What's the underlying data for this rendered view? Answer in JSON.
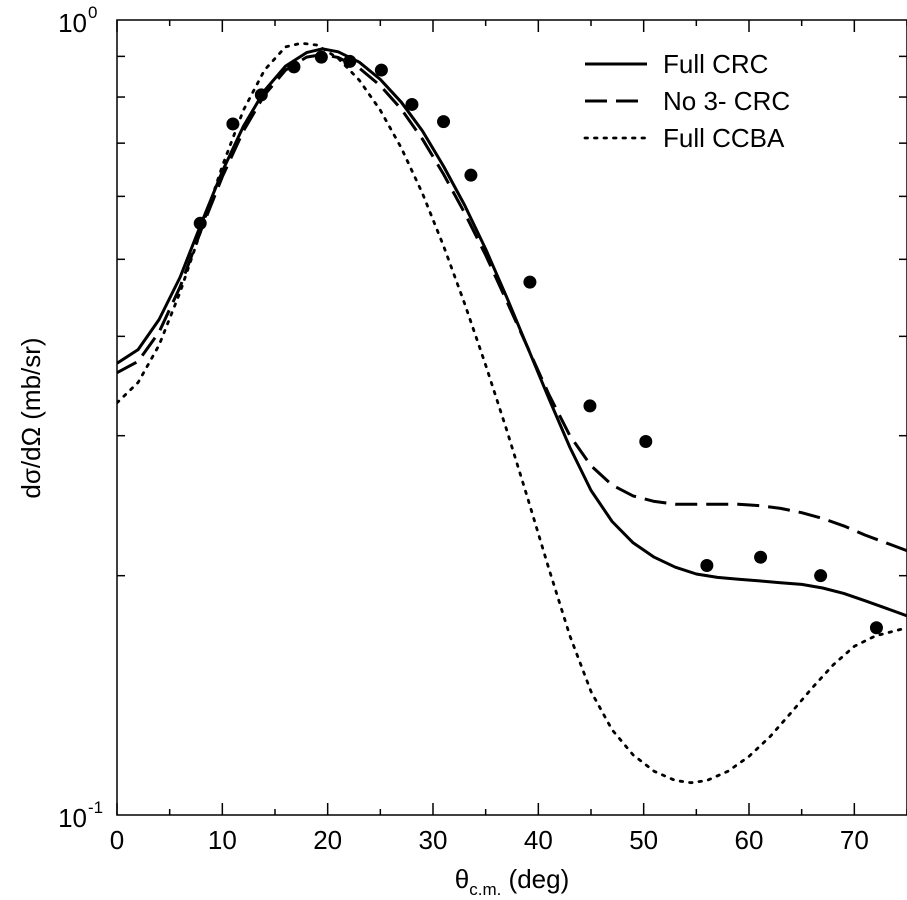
{
  "chart_data": {
    "type": "line",
    "title": "",
    "xlabel": "θ",
    "xlabel_sub": "c.m.",
    "xlabel_unit": " (deg)",
    "ylabel": "dσ/dΩ (mb/sr)",
    "xlim": [
      0,
      75
    ],
    "ylim": [
      0.1,
      1
    ],
    "yscale": "log",
    "x_ticks": [
      0,
      10,
      20,
      30,
      40,
      50,
      60,
      70
    ],
    "y_tick_labels": [
      {
        "value": 1,
        "base": "10",
        "exp": "0"
      },
      {
        "value": 0.1,
        "base": "10",
        "exp": "-1"
      }
    ],
    "grid": false,
    "legend_position": "top-right",
    "series": [
      {
        "name": "Full CRC",
        "style": "solid",
        "color": "#000000",
        "x": [
          0,
          2,
          4,
          6,
          8,
          10,
          12,
          14,
          16,
          18,
          19.5,
          21,
          23,
          25,
          27,
          29,
          31,
          33,
          35,
          37,
          39,
          41,
          43,
          45,
          47,
          49,
          51,
          53,
          55,
          57,
          59,
          61,
          63,
          65,
          67,
          69,
          71,
          73,
          75
        ],
        "y": [
          0.37,
          0.385,
          0.42,
          0.475,
          0.555,
          0.645,
          0.735,
          0.815,
          0.875,
          0.91,
          0.92,
          0.912,
          0.885,
          0.842,
          0.788,
          0.725,
          0.655,
          0.585,
          0.515,
          0.448,
          0.387,
          0.334,
          0.29,
          0.256,
          0.234,
          0.22,
          0.211,
          0.205,
          0.201,
          0.199,
          0.198,
          0.197,
          0.196,
          0.195,
          0.193,
          0.19,
          0.186,
          0.182,
          0.178
        ]
      },
      {
        "name": "No 3- CRC",
        "style": "dashed",
        "color": "#000000",
        "x": [
          0,
          2,
          4,
          6,
          8,
          10,
          12,
          14,
          16,
          18,
          19.5,
          21,
          23,
          25,
          27,
          29,
          31,
          33,
          35,
          37,
          39,
          41,
          43,
          45,
          47,
          49,
          51,
          53,
          55,
          57,
          59,
          61,
          63,
          65,
          67,
          69,
          71,
          73,
          75
        ],
        "y": [
          0.36,
          0.372,
          0.405,
          0.462,
          0.545,
          0.635,
          0.725,
          0.805,
          0.865,
          0.898,
          0.905,
          0.897,
          0.87,
          0.827,
          0.772,
          0.708,
          0.64,
          0.572,
          0.506,
          0.443,
          0.387,
          0.338,
          0.3,
          0.275,
          0.26,
          0.252,
          0.248,
          0.246,
          0.246,
          0.246,
          0.246,
          0.245,
          0.243,
          0.24,
          0.236,
          0.231,
          0.225,
          0.22,
          0.215
        ]
      },
      {
        "name": "Full CCBA",
        "style": "dotted",
        "color": "#000000",
        "x": [
          0,
          2,
          4,
          6,
          8,
          10,
          12,
          14,
          16,
          17.5,
          19,
          21,
          23,
          25,
          27,
          29,
          31,
          33,
          35,
          37,
          39,
          41,
          43,
          45,
          47,
          49,
          51,
          53,
          54.5,
          56,
          58,
          60,
          62,
          64,
          66,
          68,
          70,
          72,
          75
        ],
        "y": [
          0.33,
          0.35,
          0.39,
          0.455,
          0.545,
          0.655,
          0.77,
          0.865,
          0.925,
          0.935,
          0.93,
          0.895,
          0.84,
          0.77,
          0.69,
          0.605,
          0.52,
          0.44,
          0.368,
          0.305,
          0.25,
          0.204,
          0.168,
          0.143,
          0.128,
          0.119,
          0.1135,
          0.1105,
          0.1098,
          0.1105,
          0.1135,
          0.1185,
          0.1255,
          0.1345,
          0.1445,
          0.1545,
          0.163,
          0.168,
          0.172
        ]
      },
      {
        "name": "",
        "style": "points",
        "color": "#000000",
        "x": [
          7.9,
          11,
          13.7,
          16.8,
          19.4,
          22.1,
          25.1,
          28,
          31,
          33.6,
          39.2,
          44.9,
          50.2,
          56,
          61.1,
          66.8,
          72.1
        ],
        "y": [
          0.555,
          0.74,
          0.805,
          0.873,
          0.898,
          0.887,
          0.865,
          0.783,
          0.745,
          0.638,
          0.468,
          0.327,
          0.295,
          0.206,
          0.211,
          0.2,
          0.172
        ]
      }
    ]
  }
}
